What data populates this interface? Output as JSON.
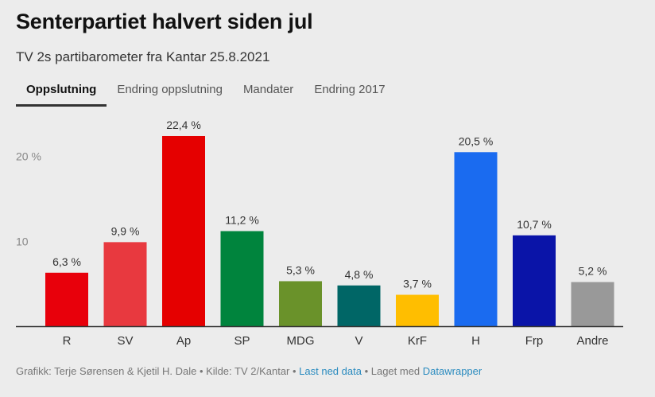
{
  "header": {
    "title": "Senterpartiet halvert siden jul",
    "subtitle": "TV 2s partibarometer fra Kantar 25.8.2021"
  },
  "tabs": [
    {
      "label": "Oppslutning",
      "active": true
    },
    {
      "label": "Endring oppslutning",
      "active": false
    },
    {
      "label": "Mandater",
      "active": false
    },
    {
      "label": "Endring 2017",
      "active": false
    }
  ],
  "chart_data": {
    "type": "bar",
    "categories": [
      "R",
      "SV",
      "Ap",
      "SP",
      "MDG",
      "V",
      "KrF",
      "H",
      "Frp",
      "Andre"
    ],
    "values": [
      6.3,
      9.9,
      22.4,
      11.2,
      5.3,
      4.8,
      3.7,
      20.5,
      10.7,
      5.2
    ],
    "value_labels": [
      "6,3 %",
      "9,9 %",
      "22,4 %",
      "11,2 %",
      "5,3 %",
      "4,8 %",
      "3,7 %",
      "20,5 %",
      "10,7 %",
      "5,2 %"
    ],
    "colors": [
      "#e8000b",
      "#e8393f",
      "#e50000",
      "#00843d",
      "#6a922a",
      "#006666",
      "#ffbe00",
      "#1a6bf0",
      "#0a14a8",
      "#999999"
    ],
    "y_ticks": [
      {
        "value": 10,
        "label": "10"
      },
      {
        "value": 20,
        "label": "20 %"
      }
    ],
    "ylim": [
      0,
      22.4
    ],
    "grid": false
  },
  "footer": {
    "credit": "Grafikk: Terje Sørensen & Kjetil H. Dale • Kilde: TV 2/Kantar • ",
    "download_link": "Last ned data",
    "made_with": " • Laget med ",
    "datawrapper_link": "Datawrapper"
  }
}
